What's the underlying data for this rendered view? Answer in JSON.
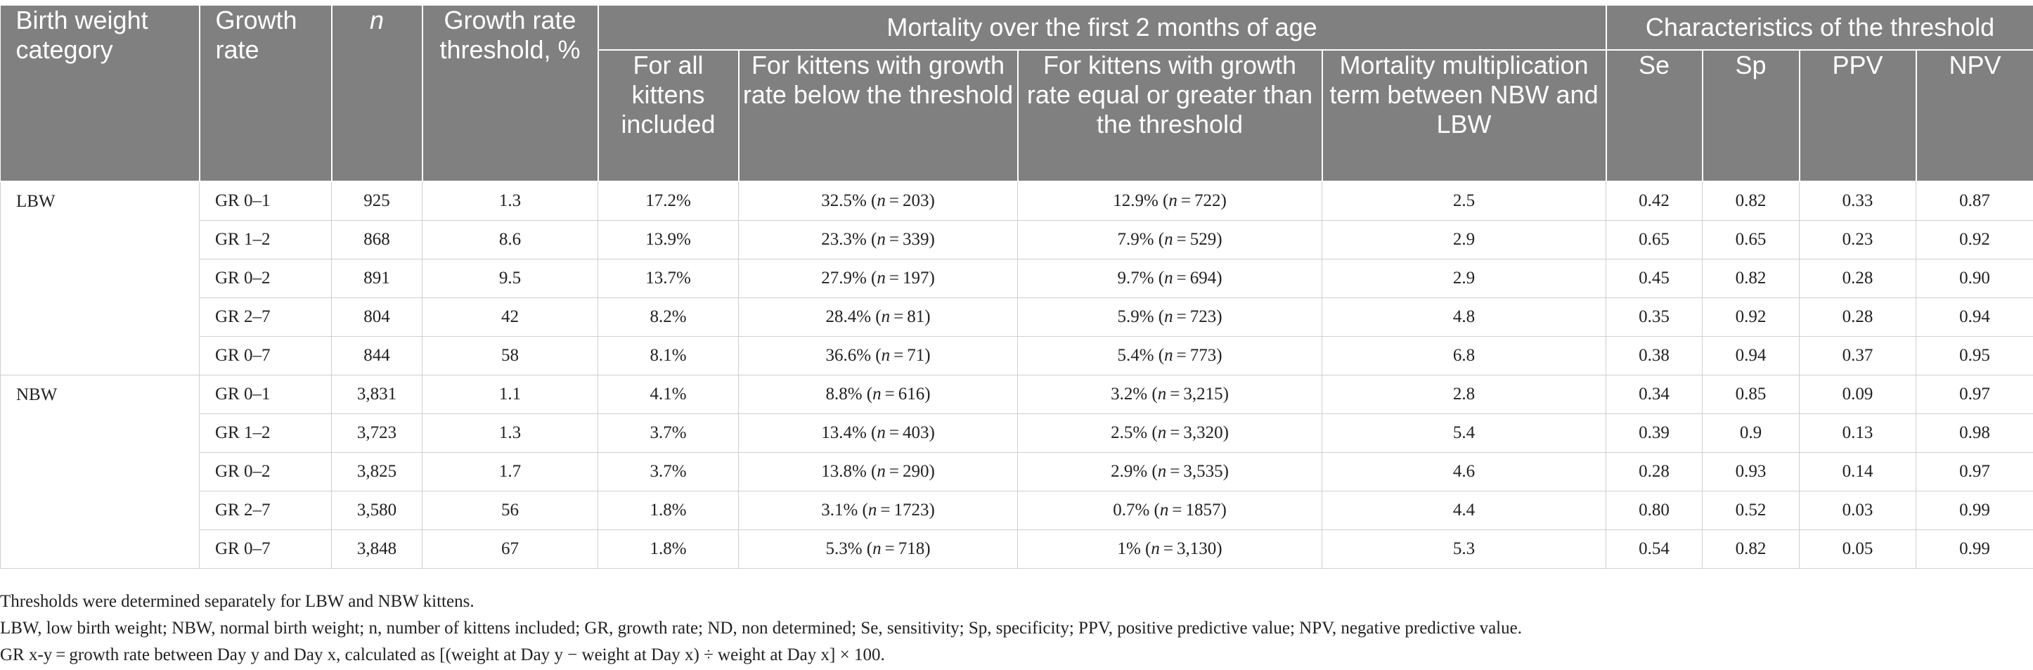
{
  "header": {
    "birth_weight_category": "Birth weight category",
    "growth_rate": "Growth rate",
    "n": "n",
    "threshold": "Growth rate threshold, %",
    "mortality_group": "Mortality over the first 2 months of age",
    "characteristics_group": "Characteristics of the threshold",
    "all_kittens": "For all kittens included",
    "below": "For kittens with growth rate below the threshold",
    "above": "For kittens with growth rate equal or greater than the threshold",
    "multiplication": "Mortality multiplication term between NBW and LBW",
    "se": "Se",
    "sp": "Sp",
    "ppv": "PPV",
    "npv": "NPV"
  },
  "groups": [
    {
      "category": "LBW",
      "rows": [
        {
          "gr": "GR 0–1",
          "n": "925",
          "threshold": "1.3",
          "all": "17.2%",
          "below": "32.5% (n = 203)",
          "above": "12.9% (n = 722)",
          "mult": "2.5",
          "se": "0.42",
          "sp": "0.82",
          "ppv": "0.33",
          "npv": "0.87"
        },
        {
          "gr": "GR 1–2",
          "n": "868",
          "threshold": "8.6",
          "all": "13.9%",
          "below": "23.3% (n = 339)",
          "above": "7.9% (n = 529)",
          "mult": "2.9",
          "se": "0.65",
          "sp": "0.65",
          "ppv": "0.23",
          "npv": "0.92"
        },
        {
          "gr": "GR 0–2",
          "n": "891",
          "threshold": "9.5",
          "all": "13.7%",
          "below": "27.9% (n = 197)",
          "above": "9.7% (n = 694)",
          "mult": "2.9",
          "se": "0.45",
          "sp": "0.82",
          "ppv": "0.28",
          "npv": "0.90"
        },
        {
          "gr": "GR 2–7",
          "n": "804",
          "threshold": "42",
          "all": "8.2%",
          "below": "28.4% (n = 81)",
          "above": "5.9% (n = 723)",
          "mult": "4.8",
          "se": "0.35",
          "sp": "0.92",
          "ppv": "0.28",
          "npv": "0.94"
        },
        {
          "gr": "GR 0–7",
          "n": "844",
          "threshold": "58",
          "all": "8.1%",
          "below": "36.6% (n = 71)",
          "above": "5.4% (n = 773)",
          "mult": "6.8",
          "se": "0.38",
          "sp": "0.94",
          "ppv": "0.37",
          "npv": "0.95"
        }
      ]
    },
    {
      "category": "NBW",
      "rows": [
        {
          "gr": "GR 0–1",
          "n": "3,831",
          "threshold": "1.1",
          "all": "4.1%",
          "below": "8.8% (n = 616)",
          "above": "3.2% (n = 3,215)",
          "mult": "2.8",
          "se": "0.34",
          "sp": "0.85",
          "ppv": "0.09",
          "npv": "0.97"
        },
        {
          "gr": "GR 1–2",
          "n": "3,723",
          "threshold": "1.3",
          "all": "3.7%",
          "below": "13.4% (n = 403)",
          "above": "2.5% (n = 3,320)",
          "mult": "5.4",
          "se": "0.39",
          "sp": "0.9",
          "ppv": "0.13",
          "npv": "0.98"
        },
        {
          "gr": "GR 0–2",
          "n": "3,825",
          "threshold": "1.7",
          "all": "3.7%",
          "below": "13.8% (n = 290)",
          "above": "2.9% (n = 3,535)",
          "mult": "4.6",
          "se": "0.28",
          "sp": "0.93",
          "ppv": "0.14",
          "npv": "0.97"
        },
        {
          "gr": "GR 2–7",
          "n": "3,580",
          "threshold": "56",
          "all": "1.8%",
          "below": "3.1% (n = 1723)",
          "above": "0.7% (n = 1857)",
          "mult": "4.4",
          "se": "0.80",
          "sp": "0.52",
          "ppv": "0.03",
          "npv": "0.99"
        },
        {
          "gr": "GR 0–7",
          "n": "3,848",
          "threshold": "67",
          "all": "1.8%",
          "below": "5.3% (n = 718)",
          "above": "1% (n = 3,130)",
          "mult": "5.3",
          "se": "0.54",
          "sp": "0.82",
          "ppv": "0.05",
          "npv": "0.99"
        }
      ]
    }
  ],
  "notes": [
    "Thresholds were determined separately for LBW and NBW kittens.",
    "LBW, low birth weight; NBW, normal birth weight; n, number of kittens included; GR, growth rate; ND, non determined; Se, sensitivity; Sp, specificity; PPV, positive predictive value; NPV, negative predictive value.",
    "GR x-y = growth rate between Day y and Day x, calculated as [(weight at Day y − weight at Day x) ÷ weight at Day x] × 100."
  ]
}
